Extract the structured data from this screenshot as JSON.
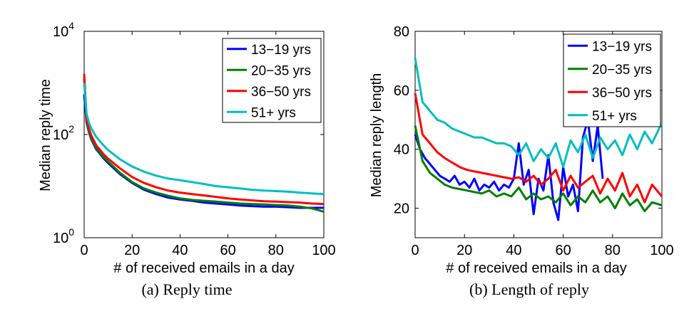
{
  "chart_data": [
    {
      "type": "line",
      "xlabel": "# of received emails in a day",
      "ylabel": "Median reply time",
      "caption": "(a)  Reply time",
      "xlim": [
        0,
        100
      ],
      "ylim": [
        1,
        10000
      ],
      "yscale": "log",
      "xticks": [
        "0",
        "20",
        "40",
        "60",
        "80",
        "100"
      ],
      "yticks": [
        {
          "base": "10",
          "exp": "0",
          "value": 1
        },
        {
          "base": "10",
          "exp": "2",
          "value": 100
        },
        {
          "base": "10",
          "exp": "4",
          "value": 10000
        }
      ],
      "legend_position": "top-right",
      "series": [
        {
          "name": "13−19 yrs",
          "color": "#0000ff",
          "x": [
            0,
            1,
            2,
            3,
            5,
            8,
            10,
            15,
            20,
            25,
            30,
            35,
            40,
            45,
            50,
            55,
            60,
            65,
            70,
            75,
            80,
            85,
            90,
            95,
            100
          ],
          "y": [
            600,
            170,
            110,
            80,
            52,
            35,
            28,
            17,
            11.5,
            8.5,
            7,
            6,
            5.5,
            5.2,
            4.8,
            4.6,
            4.4,
            4.2,
            4.1,
            4,
            4,
            3.9,
            3.8,
            3.8,
            3.8
          ]
        },
        {
          "name": "20−35 yrs",
          "color": "#008000",
          "x": [
            0,
            1,
            2,
            3,
            5,
            8,
            10,
            15,
            20,
            25,
            30,
            35,
            40,
            45,
            50,
            55,
            60,
            65,
            70,
            75,
            80,
            85,
            90,
            95,
            100
          ],
          "y": [
            1200,
            180,
            115,
            85,
            55,
            37,
            30,
            18,
            12,
            9,
            7.5,
            6.5,
            5.8,
            5.4,
            5.2,
            5,
            4.8,
            4.6,
            4.5,
            4.4,
            4.3,
            4.2,
            4,
            3.7,
            3.2
          ]
        },
        {
          "name": "36−50 yrs",
          "color": "#ff0000",
          "x": [
            0,
            1,
            2,
            3,
            5,
            8,
            10,
            15,
            20,
            25,
            30,
            35,
            40,
            45,
            50,
            55,
            60,
            65,
            70,
            75,
            80,
            85,
            90,
            95,
            100
          ],
          "y": [
            1500,
            200,
            130,
            95,
            62,
            42,
            34,
            22,
            15,
            11.5,
            9.5,
            8.2,
            7.5,
            7,
            6.6,
            6.2,
            5.8,
            5.5,
            5.3,
            5.1,
            5,
            4.9,
            4.8,
            4.6,
            4.5
          ]
        },
        {
          "name": "51+ yrs",
          "color": "#00bfbf",
          "x": [
            0,
            1,
            2,
            3,
            5,
            8,
            10,
            15,
            20,
            25,
            30,
            35,
            40,
            45,
            50,
            55,
            60,
            65,
            70,
            75,
            80,
            85,
            90,
            95,
            100
          ],
          "y": [
            1000,
            250,
            170,
            130,
            90,
            62,
            50,
            33,
            24,
            19,
            16,
            14,
            13,
            12,
            11,
            10,
            9.5,
            9,
            8.5,
            8.2,
            8,
            7.8,
            7.5,
            7.2,
            7
          ]
        }
      ]
    },
    {
      "type": "line",
      "xlabel": "# of received emails in a day",
      "ylabel": "Median reply length",
      "caption": "(b)  Length of reply",
      "xlim": [
        0,
        100
      ],
      "ylim": [
        10,
        80
      ],
      "yscale": "linear",
      "xticks": [
        "0",
        "20",
        "40",
        "60",
        "80",
        "100"
      ],
      "yticks": [
        {
          "label": "20",
          "value": 20
        },
        {
          "label": "40",
          "value": 40
        },
        {
          "label": "60",
          "value": 60
        },
        {
          "label": "80",
          "value": 80
        }
      ],
      "legend_position": "top-right",
      "series": [
        {
          "name": "13−19 yrs",
          "color": "#0000ff",
          "x": [
            0,
            2,
            4,
            6,
            8,
            10,
            12,
            14,
            16,
            18,
            20,
            22,
            24,
            26,
            28,
            30,
            32,
            34,
            36,
            38,
            40,
            42,
            44,
            46,
            48,
            50,
            52,
            54,
            56,
            58,
            60,
            62,
            64,
            66,
            68,
            70,
            72,
            74,
            76
          ],
          "y": [
            45,
            40,
            37,
            35,
            33,
            31,
            30,
            29,
            31,
            28,
            29,
            27,
            30,
            26,
            28,
            27,
            29,
            26,
            28,
            27,
            30,
            42,
            28,
            33,
            18,
            30,
            26,
            38,
            22,
            16,
            34,
            24,
            28,
            19,
            44,
            50,
            36,
            48,
            30
          ]
        },
        {
          "name": "20−35 yrs",
          "color": "#008000",
          "x": [
            0,
            3,
            6,
            9,
            12,
            15,
            18,
            21,
            24,
            27,
            30,
            33,
            36,
            39,
            42,
            45,
            48,
            51,
            54,
            57,
            60,
            63,
            66,
            69,
            72,
            75,
            78,
            81,
            84,
            87,
            90,
            93,
            96,
            100
          ],
          "y": [
            48,
            36,
            32,
            30,
            28,
            27,
            26.5,
            26,
            25.5,
            25,
            26,
            24,
            25,
            24,
            27,
            23,
            25,
            23,
            24,
            22,
            25,
            21,
            24,
            22,
            26,
            22,
            24,
            20,
            25,
            21,
            23,
            19,
            22,
            21
          ]
        },
        {
          "name": "36−50 yrs",
          "color": "#ff0000",
          "x": [
            0,
            3,
            6,
            9,
            12,
            15,
            18,
            21,
            24,
            27,
            30,
            33,
            36,
            39,
            42,
            45,
            48,
            51,
            54,
            57,
            60,
            63,
            66,
            69,
            72,
            75,
            78,
            81,
            84,
            87,
            90,
            93,
            96,
            100
          ],
          "y": [
            59,
            45,
            42,
            39,
            37,
            35.5,
            34,
            33,
            32.5,
            32,
            31.5,
            31,
            30.5,
            30,
            30.5,
            29,
            31,
            28,
            30,
            33,
            26,
            31,
            27,
            29,
            31,
            25,
            30,
            26,
            32,
            24,
            28,
            22,
            28,
            24
          ]
        },
        {
          "name": "51+ yrs",
          "color": "#00bfbf",
          "x": [
            0,
            3,
            6,
            9,
            12,
            15,
            18,
            21,
            24,
            27,
            30,
            33,
            36,
            39,
            42,
            45,
            48,
            51,
            54,
            57,
            60,
            63,
            66,
            69,
            72,
            75,
            78,
            81,
            84,
            87,
            90,
            93,
            96,
            100
          ],
          "y": [
            71,
            56,
            53,
            50,
            49,
            47,
            46,
            45,
            44,
            44,
            43,
            42,
            42,
            41,
            38,
            42,
            36,
            40,
            37,
            42,
            34,
            43,
            39,
            45,
            37,
            44,
            40,
            43,
            38,
            45,
            40,
            46,
            42,
            49
          ]
        }
      ]
    }
  ]
}
